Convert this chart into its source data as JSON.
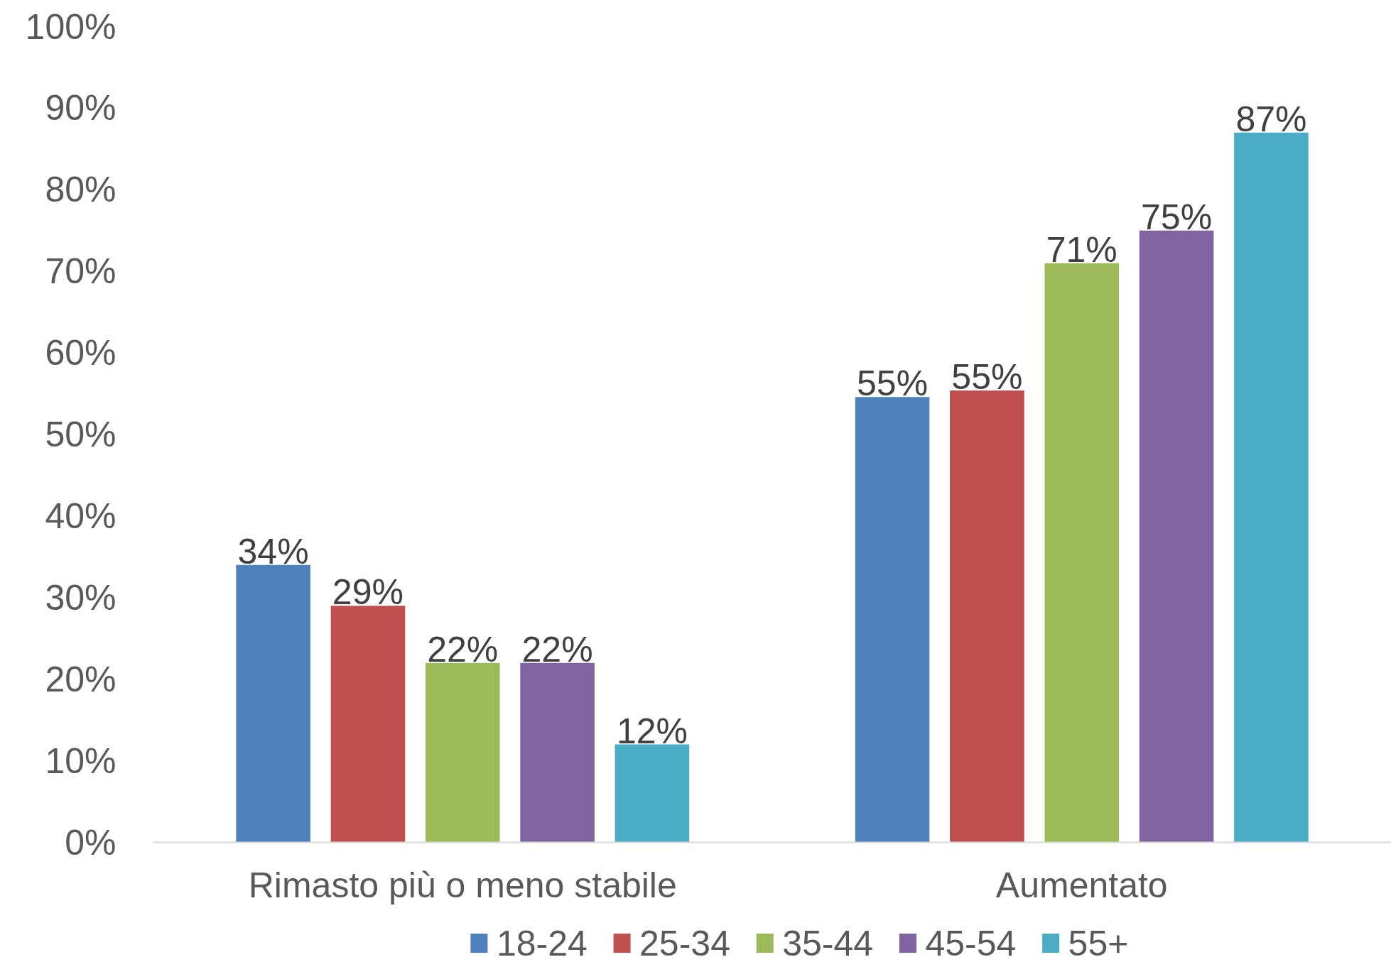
{
  "chart_data": {
    "type": "bar",
    "categories": [
      "Rimasto più o meno stabile",
      "Aumentato"
    ],
    "series": [
      {
        "name": "18-24",
        "color": "#4f81bd",
        "values": [
          34,
          54.6
        ],
        "value_labels": [
          "34%",
          "55%"
        ]
      },
      {
        "name": "25-34",
        "color": "#c0504d",
        "values": [
          29,
          55.4
        ],
        "value_labels": [
          "29%",
          "55%"
        ]
      },
      {
        "name": "35-44",
        "color": "#9bbb59",
        "values": [
          22,
          71
        ],
        "value_labels": [
          "22%",
          "71%"
        ]
      },
      {
        "name": "45-54",
        "color": "#8064a2",
        "values": [
          22,
          75
        ],
        "value_labels": [
          "22%",
          "75%"
        ]
      },
      {
        "name": "55+",
        "color": "#4bacc6",
        "values": [
          12,
          87
        ],
        "value_labels": [
          "12%",
          "87%"
        ]
      }
    ],
    "ylim": [
      0,
      100
    ],
    "yticks": [
      {
        "value": 0,
        "label": "0%"
      },
      {
        "value": 10,
        "label": "10%"
      },
      {
        "value": 20,
        "label": "20%"
      },
      {
        "value": 30,
        "label": "30%"
      },
      {
        "value": 40,
        "label": "40%"
      },
      {
        "value": 50,
        "label": "50%"
      },
      {
        "value": 60,
        "label": "60%"
      },
      {
        "value": 70,
        "label": "70%"
      },
      {
        "value": 80,
        "label": "80%"
      },
      {
        "value": 90,
        "label": "90%"
      },
      {
        "value": 100,
        "label": "100%"
      }
    ],
    "grid": false,
    "legend": "bottom"
  }
}
